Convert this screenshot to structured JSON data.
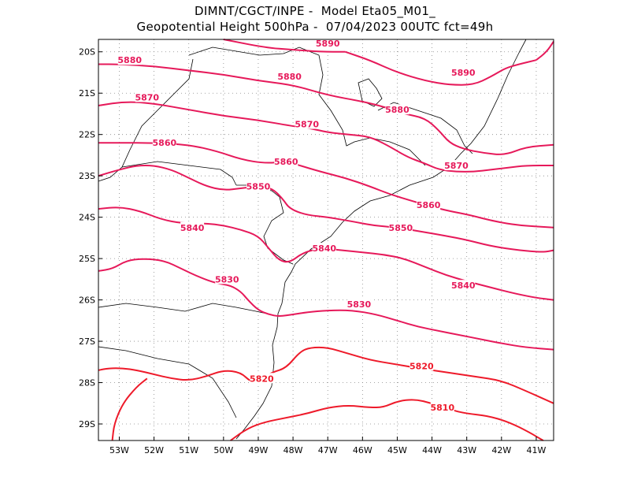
{
  "title": {
    "line1": "DIMNT/CGCT/INPE -  Model Eta05_M01_",
    "line2": "Geopotential Height 500hPa -  07/04/2023 00UTC fct=49h"
  },
  "chart_data": {
    "type": "contour-map",
    "variable": "Geopotential Height 500hPa",
    "x_ticks": [
      "53W",
      "52W",
      "51W",
      "50W",
      "49W",
      "48W",
      "47W",
      "46W",
      "45W",
      "44W",
      "43W",
      "42W",
      "41W"
    ],
    "y_ticks": [
      "20S",
      "21S",
      "22S",
      "23S",
      "24S",
      "25S",
      "26S",
      "27S",
      "28S",
      "29S"
    ],
    "xlim": [
      -53.6,
      -40.5
    ],
    "ylim": [
      -29.4,
      -19.7
    ],
    "grid": true,
    "contours": [
      {
        "level": 5890,
        "color": "#e6195a",
        "points": [
          [
            -46.5,
            -20.0
          ],
          [
            -45.8,
            -20.2
          ],
          [
            -45.0,
            -20.5
          ],
          [
            -44.2,
            -20.7
          ],
          [
            -43.5,
            -20.8
          ],
          [
            -42.8,
            -20.8
          ],
          [
            -42.3,
            -20.6
          ],
          [
            -41.9,
            -20.4
          ],
          [
            -41.5,
            -20.3
          ],
          [
            -41.0,
            -20.2
          ]
        ],
        "labels": [
          [
            -43.1,
            -20.5
          ]
        ]
      },
      {
        "level": 5890,
        "color": "#e6195a",
        "points": [
          [
            -50.0,
            -19.7
          ],
          [
            -48.8,
            -19.9
          ],
          [
            -48.0,
            -19.95
          ],
          [
            -47.2,
            -20.0
          ],
          [
            -46.5,
            -20.0
          ]
        ],
        "labels": [
          [
            -47.0,
            -19.8
          ]
        ]
      },
      {
        "level": 5890,
        "color": "#e6195a",
        "points": [
          [
            -41.0,
            -20.2
          ],
          [
            -40.7,
            -20.0
          ],
          [
            -40.5,
            -19.75
          ]
        ]
      },
      {
        "level": 5880,
        "color": "#e6195a",
        "points": [
          [
            -53.6,
            -20.3
          ],
          [
            -53.0,
            -20.3
          ],
          [
            -52.0,
            -20.35
          ],
          [
            -51.0,
            -20.45
          ],
          [
            -50.0,
            -20.55
          ],
          [
            -49.0,
            -20.7
          ],
          [
            -48.0,
            -20.8
          ],
          [
            -47.0,
            -21.05
          ],
          [
            -46.0,
            -21.2
          ],
          [
            -45.3,
            -21.35
          ],
          [
            -44.8,
            -21.5
          ],
          [
            -44.2,
            -21.6
          ],
          [
            -43.8,
            -21.9
          ],
          [
            -43.5,
            -22.2
          ],
          [
            -43.1,
            -22.35
          ],
          [
            -42.5,
            -22.45
          ],
          [
            -41.9,
            -22.5
          ],
          [
            -41.3,
            -22.3
          ],
          [
            -40.5,
            -22.25
          ]
        ],
        "labels": [
          [
            -52.7,
            -20.2
          ],
          [
            -48.1,
            -20.6
          ],
          [
            -45.0,
            -21.4
          ]
        ]
      },
      {
        "level": 5870,
        "color": "#e6195a",
        "points": [
          [
            -53.6,
            -21.3
          ],
          [
            -52.8,
            -21.2
          ],
          [
            -52.0,
            -21.25
          ],
          [
            -51.0,
            -21.4
          ],
          [
            -50.0,
            -21.55
          ],
          [
            -49.0,
            -21.65
          ],
          [
            -48.0,
            -21.8
          ],
          [
            -47.5,
            -21.85
          ],
          [
            -47.0,
            -21.95
          ],
          [
            -46.4,
            -22.0
          ],
          [
            -45.8,
            -22.05
          ],
          [
            -45.3,
            -22.25
          ],
          [
            -44.7,
            -22.55
          ],
          [
            -44.2,
            -22.7
          ],
          [
            -43.8,
            -22.85
          ],
          [
            -43.3,
            -22.9
          ],
          [
            -42.8,
            -22.9
          ],
          [
            -42.3,
            -22.85
          ],
          [
            -41.8,
            -22.8
          ],
          [
            -41.3,
            -22.75
          ],
          [
            -40.5,
            -22.75
          ]
        ],
        "labels": [
          [
            -52.2,
            -21.1
          ],
          [
            -47.6,
            -21.75
          ],
          [
            -43.3,
            -22.75
          ]
        ]
      },
      {
        "level": 5860,
        "color": "#e6195a",
        "points": [
          [
            -53.6,
            -22.2
          ],
          [
            -53.0,
            -22.2
          ],
          [
            -52.0,
            -22.2
          ],
          [
            -51.0,
            -22.25
          ],
          [
            -50.2,
            -22.4
          ],
          [
            -49.5,
            -22.6
          ],
          [
            -48.8,
            -22.7
          ],
          [
            -48.2,
            -22.65
          ],
          [
            -47.8,
            -22.75
          ],
          [
            -47.2,
            -22.9
          ],
          [
            -46.5,
            -23.05
          ],
          [
            -45.8,
            -23.25
          ],
          [
            -45.2,
            -23.45
          ],
          [
            -44.6,
            -23.6
          ],
          [
            -44.0,
            -23.75
          ],
          [
            -43.5,
            -23.85
          ],
          [
            -42.9,
            -23.95
          ],
          [
            -42.2,
            -24.1
          ],
          [
            -41.5,
            -24.2
          ],
          [
            -40.5,
            -24.25
          ]
        ],
        "labels": [
          [
            -51.7,
            -22.2
          ],
          [
            -48.2,
            -22.65
          ],
          [
            -44.1,
            -23.7
          ]
        ]
      },
      {
        "level": 5850,
        "color": "#e6195a",
        "points": [
          [
            -53.6,
            -23.0
          ],
          [
            -53.0,
            -22.85
          ],
          [
            -52.5,
            -22.75
          ],
          [
            -52.0,
            -22.75
          ],
          [
            -51.5,
            -22.85
          ],
          [
            -51.0,
            -23.05
          ],
          [
            -50.5,
            -23.25
          ],
          [
            -50.0,
            -23.35
          ],
          [
            -49.5,
            -23.3
          ],
          [
            -49.0,
            -23.25
          ],
          [
            -48.6,
            -23.3
          ],
          [
            -48.3,
            -23.55
          ],
          [
            -48.1,
            -23.8
          ],
          [
            -47.6,
            -23.95
          ],
          [
            -47.0,
            -24.0
          ],
          [
            -46.3,
            -24.1
          ],
          [
            -45.7,
            -24.2
          ],
          [
            -45.0,
            -24.25
          ],
          [
            -44.3,
            -24.35
          ],
          [
            -43.6,
            -24.45
          ],
          [
            -43.0,
            -24.55
          ],
          [
            -42.3,
            -24.7
          ],
          [
            -41.5,
            -24.8
          ],
          [
            -40.8,
            -24.85
          ],
          [
            -40.5,
            -24.8
          ]
        ],
        "labels": [
          [
            -49.0,
            -23.25
          ],
          [
            -44.9,
            -24.25
          ]
        ]
      },
      {
        "level": 5840,
        "color": "#e6195a",
        "points": [
          [
            -53.6,
            -23.8
          ],
          [
            -53.0,
            -23.75
          ],
          [
            -52.4,
            -23.85
          ],
          [
            -51.8,
            -24.05
          ],
          [
            -51.2,
            -24.15
          ],
          [
            -50.5,
            -24.15
          ],
          [
            -50.0,
            -24.2
          ],
          [
            -49.5,
            -24.3
          ],
          [
            -49.0,
            -24.45
          ],
          [
            -48.7,
            -24.75
          ],
          [
            -48.4,
            -25.05
          ],
          [
            -48.1,
            -25.1
          ],
          [
            -47.7,
            -24.85
          ],
          [
            -47.2,
            -24.75
          ],
          [
            -46.6,
            -24.8
          ],
          [
            -46.0,
            -24.85
          ],
          [
            -45.4,
            -24.9
          ],
          [
            -44.8,
            -25.0
          ],
          [
            -44.2,
            -25.2
          ],
          [
            -43.6,
            -25.4
          ],
          [
            -43.0,
            -25.55
          ],
          [
            -42.3,
            -25.7
          ],
          [
            -41.6,
            -25.85
          ],
          [
            -41.0,
            -25.95
          ],
          [
            -40.5,
            -26.0
          ]
        ],
        "labels": [
          [
            -50.9,
            -24.25
          ],
          [
            -47.1,
            -24.75
          ],
          [
            -43.1,
            -25.65
          ]
        ]
      },
      {
        "level": 5830,
        "color": "#e6195a",
        "points": [
          [
            -53.6,
            -25.3
          ],
          [
            -53.2,
            -25.25
          ],
          [
            -52.8,
            -25.05
          ],
          [
            -52.3,
            -25.0
          ],
          [
            -51.7,
            -25.05
          ],
          [
            -51.2,
            -25.25
          ],
          [
            -50.7,
            -25.45
          ],
          [
            -50.2,
            -25.6
          ],
          [
            -49.8,
            -25.65
          ],
          [
            -49.5,
            -25.8
          ],
          [
            -49.3,
            -26.0
          ],
          [
            -49.0,
            -26.25
          ],
          [
            -48.7,
            -26.35
          ],
          [
            -48.4,
            -26.4
          ],
          [
            -48.0,
            -26.35
          ],
          [
            -47.6,
            -26.3
          ],
          [
            -47.0,
            -26.25
          ],
          [
            -46.3,
            -26.25
          ],
          [
            -45.6,
            -26.35
          ],
          [
            -45.0,
            -26.5
          ],
          [
            -44.4,
            -26.65
          ],
          [
            -43.8,
            -26.75
          ],
          [
            -43.2,
            -26.85
          ],
          [
            -42.6,
            -26.95
          ],
          [
            -42.0,
            -27.05
          ],
          [
            -41.3,
            -27.15
          ],
          [
            -40.5,
            -27.2
          ]
        ],
        "labels": [
          [
            -49.9,
            -25.5
          ],
          [
            -46.1,
            -26.1
          ]
        ]
      },
      {
        "level": 5820,
        "color": "#ee1a2a",
        "points": [
          [
            -53.6,
            -27.7
          ],
          [
            -53.3,
            -27.65
          ],
          [
            -52.9,
            -27.65
          ],
          [
            -52.5,
            -27.7
          ],
          [
            -52.0,
            -27.8
          ],
          [
            -51.5,
            -27.9
          ],
          [
            -51.0,
            -27.95
          ],
          [
            -50.5,
            -27.85
          ],
          [
            -50.0,
            -27.7
          ],
          [
            -49.5,
            -27.75
          ],
          [
            -49.2,
            -28.0
          ],
          [
            -48.9,
            -27.9
          ],
          [
            -48.6,
            -27.75
          ],
          [
            -48.2,
            -27.65
          ],
          [
            -47.8,
            -27.25
          ],
          [
            -47.5,
            -27.15
          ],
          [
            -47.0,
            -27.15
          ],
          [
            -46.4,
            -27.3
          ],
          [
            -45.8,
            -27.45
          ],
          [
            -45.1,
            -27.55
          ],
          [
            -44.4,
            -27.65
          ],
          [
            -43.6,
            -27.75
          ],
          [
            -42.8,
            -27.85
          ],
          [
            -42.0,
            -27.95
          ],
          [
            -41.3,
            -28.2
          ],
          [
            -40.5,
            -28.5
          ]
        ],
        "labels": [
          [
            -48.9,
            -27.9
          ],
          [
            -44.3,
            -27.6
          ]
        ]
      },
      {
        "level": 5810,
        "color": "#ee1a2a",
        "points": [
          [
            -49.8,
            -29.4
          ],
          [
            -49.3,
            -29.1
          ],
          [
            -48.8,
            -28.95
          ],
          [
            -48.2,
            -28.85
          ],
          [
            -47.6,
            -28.75
          ],
          [
            -47.0,
            -28.6
          ],
          [
            -46.4,
            -28.55
          ],
          [
            -45.8,
            -28.6
          ],
          [
            -45.4,
            -28.6
          ],
          [
            -45.0,
            -28.45
          ],
          [
            -44.5,
            -28.4
          ],
          [
            -44.0,
            -28.5
          ],
          [
            -43.5,
            -28.65
          ],
          [
            -43.0,
            -28.75
          ],
          [
            -42.4,
            -28.8
          ],
          [
            -41.8,
            -28.95
          ],
          [
            -41.2,
            -29.2
          ],
          [
            -40.8,
            -29.4
          ]
        ],
        "labels": [
          [
            -43.7,
            -28.6
          ]
        ]
      },
      {
        "level": 5810,
        "color": "#ee1a2a",
        "points": [
          [
            -53.2,
            -29.4
          ],
          [
            -53.15,
            -29.0
          ],
          [
            -52.9,
            -28.5
          ],
          [
            -52.5,
            -28.1
          ],
          [
            -52.2,
            -27.9
          ]
        ]
      }
    ]
  }
}
